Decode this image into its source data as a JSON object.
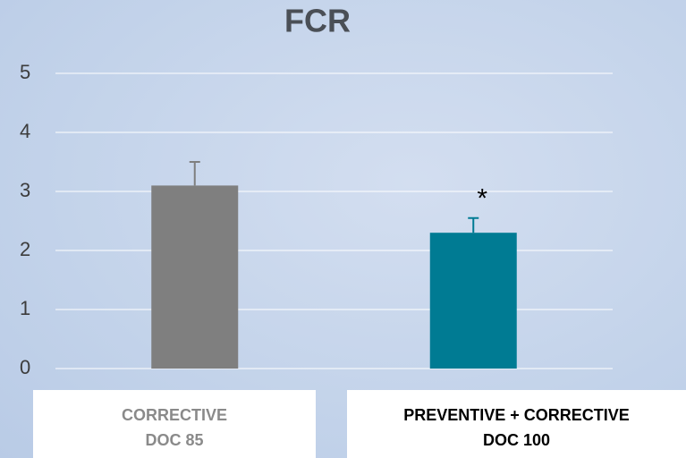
{
  "chart_data": {
    "type": "bar",
    "title": "FCR",
    "categories": [
      [
        "CORRECTIVE",
        "DOC 85"
      ],
      [
        "PREVENTIVE + CORRECTIVE",
        "DOC 100"
      ]
    ],
    "values": [
      3.1,
      2.3
    ],
    "errors": [
      0.4,
      0.25
    ],
    "colors": [
      "#7f7f7f",
      "#007b93"
    ],
    "annotation": "*",
    "ylim": [
      0,
      5
    ],
    "yticks": [
      0,
      1,
      2,
      3,
      4,
      5
    ],
    "grid": true
  }
}
